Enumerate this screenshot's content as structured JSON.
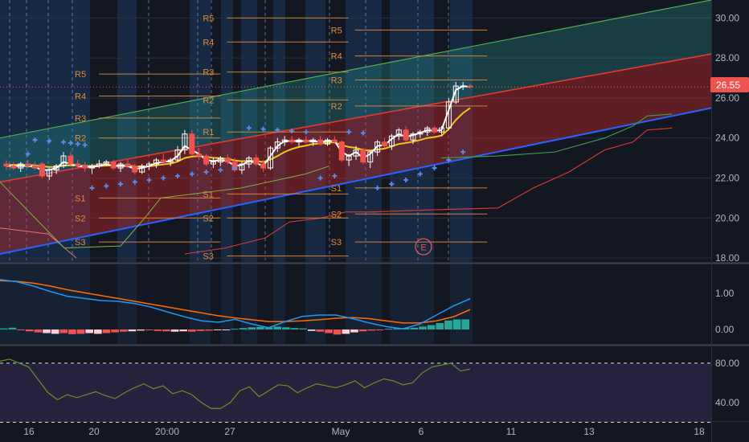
{
  "colors": {
    "background": "#131722",
    "grid": "#2a2e39",
    "pivot": "#e08a3c",
    "candle_up": "#ffffff",
    "candle_down": "#ef5350",
    "channel_upper": "#26a69a",
    "channel_lower": "#c62828",
    "channel_line": "#2962ff",
    "psar": "#5b8def",
    "ma_fast": "#ffffff",
    "ma_slow": "#f5c518",
    "macd_line": "#2196f3",
    "signal_line": "#ff6d00",
    "hist_pos": "#26a69a",
    "hist_neg": "#ef5350",
    "rsi": "#6b8e23",
    "rsi_band": "#7e57c2",
    "price_tag": "#ef5350",
    "senkou_a": "#43a047",
    "senkou_b": "#e53935"
  },
  "last_price_label": "26.55",
  "earnings_marker": "E",
  "x_axis": {
    "labels": [
      "16",
      "20",
      "20:00",
      "27",
      "May",
      "6",
      "11",
      "13",
      "18"
    ]
  },
  "price_axis": {
    "ticks": [
      "30.00",
      "28.00",
      "26.00",
      "24.00",
      "22.00",
      "20.00",
      "18.00"
    ],
    "range": [
      17.8,
      30.9
    ]
  },
  "macd_axis": {
    "ticks": [
      "1.00",
      "0.00"
    ],
    "range": [
      -0.4,
      1.8
    ]
  },
  "rsi_axis": {
    "ticks": [
      "80.00",
      "40.00"
    ],
    "range": [
      22,
      97
    ],
    "upper_band": 80,
    "lower_band": 20
  },
  "chart_data": [
    {
      "type": "candlestick",
      "pane": "price",
      "candles": [
        {
          "o": 22.7,
          "h": 22.9,
          "l": 22.4,
          "c": 22.6
        },
        {
          "o": 22.6,
          "h": 22.8,
          "l": 22.4,
          "c": 22.5
        },
        {
          "o": 22.5,
          "h": 22.8,
          "l": 22.3,
          "c": 22.7
        },
        {
          "o": 22.7,
          "h": 22.9,
          "l": 22.5,
          "c": 22.6
        },
        {
          "o": 22.6,
          "h": 22.8,
          "l": 22.4,
          "c": 22.5
        },
        {
          "o": 22.7,
          "h": 22.8,
          "l": 22.0,
          "c": 22.1
        },
        {
          "o": 22.1,
          "h": 22.5,
          "l": 21.9,
          "c": 22.4
        },
        {
          "o": 22.4,
          "h": 22.7,
          "l": 22.2,
          "c": 22.6
        },
        {
          "o": 22.6,
          "h": 23.3,
          "l": 22.5,
          "c": 23.1
        },
        {
          "o": 23.1,
          "h": 23.3,
          "l": 22.6,
          "c": 22.7
        },
        {
          "o": 22.7,
          "h": 22.9,
          "l": 22.5,
          "c": 22.6
        },
        {
          "o": 22.6,
          "h": 22.8,
          "l": 22.3,
          "c": 22.5
        },
        {
          "o": 22.5,
          "h": 22.7,
          "l": 22.2,
          "c": 22.6
        },
        {
          "o": 22.6,
          "h": 22.9,
          "l": 22.5,
          "c": 22.7
        },
        {
          "o": 22.7,
          "h": 22.9,
          "l": 22.6,
          "c": 22.8
        },
        {
          "o": 22.8,
          "h": 22.9,
          "l": 22.4,
          "c": 22.5
        },
        {
          "o": 22.5,
          "h": 22.8,
          "l": 22.3,
          "c": 22.7
        },
        {
          "o": 22.7,
          "h": 22.9,
          "l": 22.5,
          "c": 22.6
        },
        {
          "o": 22.6,
          "h": 22.7,
          "l": 22.2,
          "c": 22.3
        },
        {
          "o": 22.3,
          "h": 22.7,
          "l": 22.2,
          "c": 22.6
        },
        {
          "o": 22.6,
          "h": 22.8,
          "l": 22.4,
          "c": 22.7
        },
        {
          "o": 22.7,
          "h": 23.0,
          "l": 22.5,
          "c": 22.9
        },
        {
          "o": 22.9,
          "h": 23.2,
          "l": 22.7,
          "c": 22.8
        },
        {
          "o": 22.8,
          "h": 23.0,
          "l": 22.6,
          "c": 22.9
        },
        {
          "o": 22.9,
          "h": 23.6,
          "l": 22.8,
          "c": 23.4
        },
        {
          "o": 23.4,
          "h": 24.4,
          "l": 23.2,
          "c": 24.2
        },
        {
          "o": 24.2,
          "h": 24.4,
          "l": 23.1,
          "c": 23.2
        },
        {
          "o": 23.2,
          "h": 23.5,
          "l": 22.9,
          "c": 23.1
        },
        {
          "o": 23.1,
          "h": 23.2,
          "l": 22.6,
          "c": 22.7
        },
        {
          "o": 22.7,
          "h": 23.0,
          "l": 22.5,
          "c": 22.8
        },
        {
          "o": 22.8,
          "h": 23.1,
          "l": 22.6,
          "c": 23.0
        },
        {
          "o": 23.0,
          "h": 23.2,
          "l": 22.7,
          "c": 22.8
        },
        {
          "o": 22.8,
          "h": 23.0,
          "l": 22.3,
          "c": 22.4
        },
        {
          "o": 22.4,
          "h": 22.8,
          "l": 22.2,
          "c": 22.7
        },
        {
          "o": 22.7,
          "h": 23.1,
          "l": 22.5,
          "c": 23.0
        },
        {
          "o": 23.0,
          "h": 23.2,
          "l": 22.6,
          "c": 22.7
        },
        {
          "o": 22.7,
          "h": 22.9,
          "l": 22.3,
          "c": 22.5
        },
        {
          "o": 22.5,
          "h": 23.6,
          "l": 22.4,
          "c": 23.5
        },
        {
          "o": 23.5,
          "h": 24.0,
          "l": 23.3,
          "c": 23.8
        },
        {
          "o": 23.8,
          "h": 24.1,
          "l": 23.6,
          "c": 23.9
        },
        {
          "o": 23.9,
          "h": 24.1,
          "l": 23.7,
          "c": 23.8
        },
        {
          "o": 23.8,
          "h": 24.0,
          "l": 23.6,
          "c": 23.9
        },
        {
          "o": 23.9,
          "h": 24.1,
          "l": 23.7,
          "c": 23.8
        },
        {
          "o": 23.8,
          "h": 24.0,
          "l": 23.6,
          "c": 23.9
        },
        {
          "o": 23.9,
          "h": 24.1,
          "l": 23.6,
          "c": 23.7
        },
        {
          "o": 23.7,
          "h": 24.0,
          "l": 23.6,
          "c": 23.9
        },
        {
          "o": 23.9,
          "h": 24.1,
          "l": 23.7,
          "c": 23.8
        },
        {
          "o": 23.8,
          "h": 23.9,
          "l": 22.8,
          "c": 22.9
        },
        {
          "o": 22.9,
          "h": 23.2,
          "l": 22.6,
          "c": 23.1
        },
        {
          "o": 23.1,
          "h": 23.6,
          "l": 22.9,
          "c": 23.4
        },
        {
          "o": 23.4,
          "h": 23.5,
          "l": 22.7,
          "c": 22.8
        },
        {
          "o": 22.8,
          "h": 23.4,
          "l": 22.5,
          "c": 23.3
        },
        {
          "o": 23.3,
          "h": 23.9,
          "l": 23.1,
          "c": 23.8
        },
        {
          "o": 23.8,
          "h": 24.0,
          "l": 23.5,
          "c": 23.6
        },
        {
          "o": 23.6,
          "h": 24.2,
          "l": 23.4,
          "c": 24.1
        },
        {
          "o": 24.1,
          "h": 24.5,
          "l": 23.9,
          "c": 24.4
        },
        {
          "o": 24.4,
          "h": 24.6,
          "l": 23.8,
          "c": 23.9
        },
        {
          "o": 23.9,
          "h": 24.3,
          "l": 23.7,
          "c": 24.2
        },
        {
          "o": 24.2,
          "h": 24.4,
          "l": 24.0,
          "c": 24.3
        },
        {
          "o": 24.3,
          "h": 24.6,
          "l": 24.1,
          "c": 24.5
        },
        {
          "o": 24.5,
          "h": 24.6,
          "l": 24.2,
          "c": 24.3
        },
        {
          "o": 24.3,
          "h": 24.6,
          "l": 24.1,
          "c": 24.5
        },
        {
          "o": 24.5,
          "h": 26.0,
          "l": 24.4,
          "c": 25.8
        },
        {
          "o": 25.8,
          "h": 26.8,
          "l": 25.7,
          "c": 26.6
        },
        {
          "o": 26.6,
          "h": 26.8,
          "l": 26.4,
          "c": 26.6
        },
        {
          "o": 26.6,
          "h": 26.7,
          "l": 26.5,
          "c": 26.55
        }
      ],
      "ma_fast": [
        22.6,
        22.6,
        22.6,
        22.6,
        22.55,
        22.4,
        22.4,
        22.5,
        22.8,
        22.7,
        22.6,
        22.55,
        22.55,
        22.6,
        22.7,
        22.6,
        22.6,
        22.6,
        22.45,
        22.5,
        22.6,
        22.75,
        22.8,
        22.85,
        23.1,
        23.6,
        23.4,
        23.2,
        22.9,
        22.85,
        22.9,
        22.85,
        22.6,
        22.65,
        22.85,
        22.75,
        22.6,
        23.1,
        23.6,
        23.85,
        23.85,
        23.85,
        23.85,
        23.85,
        23.8,
        23.85,
        23.85,
        23.3,
        23.1,
        23.3,
        23.0,
        23.2,
        23.6,
        23.65,
        23.95,
        24.2,
        24.05,
        24.15,
        24.25,
        24.4,
        24.35,
        24.4,
        25.4,
        26.4,
        26.6,
        26.55
      ],
      "ma_slow": [
        22.65,
        22.65,
        22.65,
        22.65,
        22.63,
        22.58,
        22.55,
        22.55,
        22.62,
        22.63,
        22.62,
        22.6,
        22.6,
        22.6,
        22.62,
        22.62,
        22.62,
        22.62,
        22.58,
        22.57,
        22.58,
        22.63,
        22.68,
        22.72,
        22.82,
        23.0,
        23.07,
        23.1,
        23.05,
        23.01,
        22.99,
        22.96,
        22.88,
        22.84,
        22.86,
        22.85,
        22.8,
        22.92,
        23.1,
        23.3,
        23.45,
        23.55,
        23.62,
        23.7,
        23.72,
        23.76,
        23.78,
        23.65,
        23.55,
        23.5,
        23.4,
        23.37,
        23.42,
        23.47,
        23.58,
        23.7,
        23.75,
        23.82,
        23.9,
        24.0,
        24.05,
        24.12,
        24.45,
        24.9,
        25.25,
        25.5
      ],
      "psar": [
        {
          "i": 3,
          "v": 23.2
        },
        {
          "i": 4,
          "v": 23.9
        },
        {
          "i": 6,
          "v": 23.85
        },
        {
          "i": 8,
          "v": 23.8
        },
        {
          "i": 9,
          "v": 23.75
        },
        {
          "i": 10,
          "v": 23.7
        },
        {
          "i": 11,
          "v": 23.65
        },
        {
          "i": 12,
          "v": 21.5
        },
        {
          "i": 14,
          "v": 21.6
        },
        {
          "i": 16,
          "v": 21.7
        },
        {
          "i": 18,
          "v": 21.8
        },
        {
          "i": 20,
          "v": 21.9
        },
        {
          "i": 22,
          "v": 22.0
        },
        {
          "i": 24,
          "v": 22.1
        },
        {
          "i": 26,
          "v": 22.2
        },
        {
          "i": 28,
          "v": 22.3
        },
        {
          "i": 30,
          "v": 22.4
        },
        {
          "i": 32,
          "v": 22.5
        },
        {
          "i": 34,
          "v": 24.5
        },
        {
          "i": 36,
          "v": 24.45
        },
        {
          "i": 38,
          "v": 24.4
        },
        {
          "i": 40,
          "v": 24.35
        },
        {
          "i": 42,
          "v": 24.3
        },
        {
          "i": 44,
          "v": 22.0
        },
        {
          "i": 46,
          "v": 22.1
        },
        {
          "i": 48,
          "v": 24.3
        },
        {
          "i": 50,
          "v": 24.25
        },
        {
          "i": 52,
          "v": 21.5
        },
        {
          "i": 54,
          "v": 21.7
        },
        {
          "i": 56,
          "v": 21.9
        },
        {
          "i": 58,
          "v": 22.2
        },
        {
          "i": 60,
          "v": 22.5
        },
        {
          "i": 62,
          "v": 22.9
        },
        {
          "i": 64,
          "v": 23.3
        }
      ],
      "channel": {
        "upper_start": 24.0,
        "upper_end": 30.9,
        "mid_start": 21.8,
        "mid_end": 28.2,
        "lower_start": 18.2,
        "lower_end": 25.5
      },
      "senkou_a": [
        [
          0.62,
          23.0
        ],
        [
          0.7,
          23.1
        ],
        [
          0.78,
          23.3
        ],
        [
          0.85,
          24.0
        ],
        [
          0.89,
          24.6
        ],
        [
          0.91,
          25.1
        ],
        [
          0.945,
          25.2
        ]
      ],
      "senkou_b": [
        [
          0.52,
          20.3
        ],
        [
          0.6,
          20.4
        ],
        [
          0.7,
          20.5
        ],
        [
          0.75,
          21.5
        ],
        [
          0.8,
          22.3
        ],
        [
          0.85,
          23.4
        ],
        [
          0.89,
          23.8
        ],
        [
          0.91,
          24.4
        ],
        [
          0.945,
          24.5
        ]
      ],
      "pivot_sets": [
        {
          "x0": 0.13,
          "x1": 0.31,
          "labels": [
            "R5",
            "R4",
            "R3",
            "R2",
            "R1",
            "S1",
            "S2",
            "S3"
          ],
          "levels": [
            27.2,
            26.1,
            25.0,
            24.0,
            null,
            21.0,
            20.0,
            18.8
          ]
        },
        {
          "x0": 0.31,
          "x1": 0.49,
          "labels": [
            "R5",
            "R4",
            "R3",
            "R2",
            "R1",
            "S1",
            "S2",
            "S3"
          ],
          "levels": [
            30.0,
            28.8,
            27.3,
            25.9,
            24.3,
            21.2,
            20.0,
            18.1
          ]
        },
        {
          "x0": 0.49,
          "x1": 0.685,
          "labels": [
            "R5",
            "R4",
            "R3",
            "R2",
            "R1",
            "S1",
            "S2",
            "S3"
          ],
          "levels": [
            29.4,
            28.1,
            26.9,
            25.6,
            null,
            21.5,
            20.2,
            18.8
          ]
        }
      ]
    },
    {
      "type": "line",
      "pane": "macd",
      "series": [
        {
          "key": "macd",
          "values": [
            1.38,
            1.32,
            1.2,
            1.05,
            0.92,
            0.86,
            0.8,
            0.78,
            0.72,
            0.62,
            0.48,
            0.35,
            0.24,
            0.2,
            0.28,
            0.15,
            0.05,
            0.22,
            0.36,
            0.4,
            0.4,
            0.3,
            0.18,
            0.08,
            0.02,
            0.15,
            0.4,
            0.65,
            0.85
          ]
        },
        {
          "key": "signal",
          "values": [
            1.35,
            1.33,
            1.28,
            1.2,
            1.1,
            1.02,
            0.94,
            0.86,
            0.78,
            0.7,
            0.62,
            0.54,
            0.46,
            0.38,
            0.32,
            0.27,
            0.22,
            0.22,
            0.24,
            0.27,
            0.31,
            0.33,
            0.3,
            0.24,
            0.18,
            0.18,
            0.24,
            0.35,
            0.55
          ]
        }
      ],
      "histogram": [
        0.03,
        0.05,
        -0.02,
        -0.05,
        -0.08,
        -0.1,
        -0.12,
        -0.1,
        -0.13,
        -0.12,
        -0.1,
        -0.12,
        -0.1,
        -0.08,
        -0.06,
        -0.05,
        -0.03,
        -0.02,
        -0.04,
        -0.05,
        -0.06,
        -0.05,
        -0.06,
        -0.04,
        -0.03,
        -0.02,
        -0.01,
        0.02,
        0.04,
        0.06,
        0.07,
        0.06,
        0.08,
        0.06,
        0.04,
        0.03,
        -0.04,
        -0.06,
        -0.1,
        -0.14,
        -0.12,
        -0.08,
        -0.05,
        -0.03,
        -0.02,
        0.02,
        0.03,
        0.04,
        0.05,
        0.08,
        0.12,
        0.18,
        0.25,
        0.28,
        0.28
      ]
    },
    {
      "type": "line",
      "pane": "rsi",
      "series": [
        {
          "key": "rsi",
          "values": [
            82,
            84,
            80,
            76,
            63,
            50,
            43,
            48,
            45,
            48,
            51,
            47,
            44,
            50,
            55,
            59,
            54,
            57,
            49,
            52,
            48,
            40,
            34,
            34,
            40,
            52,
            56,
            46,
            52,
            58,
            57,
            50,
            55,
            59,
            57,
            55,
            58,
            62,
            55,
            60,
            64,
            62,
            58,
            60,
            70,
            76,
            78,
            80,
            72,
            74
          ]
        }
      ]
    }
  ]
}
